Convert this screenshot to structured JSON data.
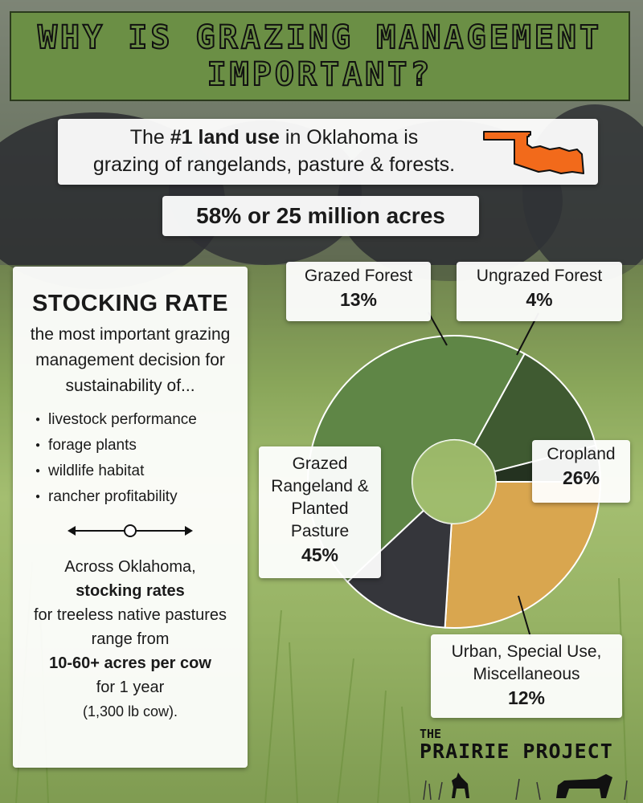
{
  "title": {
    "line1": "WHY IS GRAZING MANAGEMENT",
    "line2": "IMPORTANT?"
  },
  "fact": {
    "prefix": "The ",
    "bold": "#1 land use",
    "suffix": " in Oklahoma is",
    "line2": "grazing of rangelands, pasture & forests.",
    "map_icon": "oklahoma-map-icon",
    "map_color": "#f26a1b"
  },
  "acres": "58% or 25 million acres",
  "stocking": {
    "title": "STOCKING RATE",
    "desc": "the most important grazing management decision for sustainability of...",
    "bullets": [
      "livestock performance",
      "forage plants",
      "wildlife habitat",
      "rancher profitability"
    ],
    "slider_icon": "double-arrow-slider-icon",
    "across_1": "Across Oklahoma,",
    "across_bold": "stocking rates",
    "across_2": "for treeless native pastures range from",
    "across_bold2": "10-60+ acres per cow",
    "across_3": "for 1 year",
    "across_small": "(1,300 lb cow)."
  },
  "chart_data": {
    "type": "pie",
    "donut": true,
    "categories": [
      "Grazed Forest",
      "Ungrazed Forest",
      "Cropland",
      "Urban, Special Use, Miscellaneous",
      "Grazed Rangeland & Planted Pasture"
    ],
    "values": [
      13,
      4,
      26,
      12,
      45
    ],
    "colors": [
      "#3f5a31",
      "#243220",
      "#d9a64f",
      "#35363b",
      "#5f8646"
    ],
    "labels": {
      "grazed_forest": {
        "name": "Grazed Forest",
        "pct": "13%"
      },
      "ungrazed_forest": {
        "name": "Ungrazed Forest",
        "pct": "4%"
      },
      "cropland": {
        "name": "Cropland",
        "pct": "26%"
      },
      "urban": {
        "name1": "Urban, Special Use,",
        "name2": "Miscellaneous",
        "pct": "12%"
      },
      "rangeland": {
        "name1": "Grazed",
        "name2": "Rangeland &",
        "name3": "Planted",
        "name4": "Pasture",
        "pct": "45%"
      }
    }
  },
  "logo": {
    "small": "THE",
    "big": "PRAIRIE PROJECT"
  }
}
